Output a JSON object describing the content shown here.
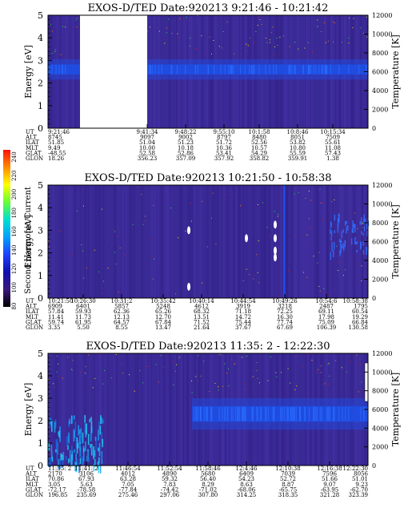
{
  "colorbar": {
    "label": "Second Harmonic Current",
    "ticks": [
      "240",
      "220",
      "200",
      "180",
      "160",
      "140",
      "120",
      "100",
      "80"
    ],
    "colors": [
      "#ff1010",
      "#ff8c00",
      "#ffff00",
      "#66ff33",
      "#00e0d0",
      "#00a0ff",
      "#2040ff",
      "#1010b0",
      "#3a1a7a",
      "#000000"
    ]
  },
  "chart_data": [
    {
      "type": "heatmap",
      "title": "EXOS-D/TED   Date:920213   9:21:46 - 10:21:42",
      "ylabel": "Energy [eV]",
      "ylabel_right": "Temperature [K]",
      "ylim": [
        0,
        5
      ],
      "ylim_right": [
        0,
        12000
      ],
      "y_ticks": [
        "0",
        "1",
        "2",
        "3",
        "4",
        "5"
      ],
      "y2_ticks": [
        "0",
        "2000",
        "4000",
        "6000",
        "8000",
        "10000",
        "12000"
      ],
      "gap": [
        0.1,
        0.31
      ],
      "band": {
        "energy": 2.6,
        "width": 0.45,
        "color": "#1d50e8"
      },
      "orbit": {
        "labels": [
          "UT",
          "ALT",
          "ILAT",
          "MLT",
          "GLAT",
          "GLON"
        ],
        "columns": [
          {
            "at": 0.0,
            "values": [
              "9:21:46",
              "8745",
              "51.85",
              "9.49",
              "-48.55",
              "18.26"
            ]
          },
          {
            "at": 0.31,
            "values": [
              "9:41:34",
              "9097",
              "51.04",
              "10.00",
              "52.58",
              "356.23"
            ]
          },
          {
            "at": 0.43,
            "values": [
              "9:48:22",
              "9002",
              "51.23",
              "10.18",
              "52.86",
              "357.09"
            ]
          },
          {
            "at": 0.55,
            "values": [
              "9:55:10",
              "8797",
              "51.72",
              "10.36",
              "53.41",
              "357.92"
            ]
          },
          {
            "at": 0.66,
            "values": [
              "10:1:58",
              "8480",
              "52.56",
              "10.57",
              "54.29",
              "358.82"
            ]
          },
          {
            "at": 0.78,
            "values": [
              "10:8:46",
              "8051",
              "53.82",
              "10.80",
              "55.59",
              "359.91"
            ]
          },
          {
            "at": 0.89,
            "values": [
              "10:15:34",
              "7509",
              "55.61",
              "11.08",
              "57.43",
              "1.38"
            ]
          }
        ]
      }
    },
    {
      "type": "heatmap",
      "title": "EXOS-D/TED   Date:920213   10:21:50 - 10:58:38",
      "ylabel": "Energy [eV]",
      "ylabel_right": "Temperature [K]",
      "ylim": [
        0,
        5
      ],
      "ylim_right": [
        0,
        12000
      ],
      "y_ticks": [
        "0",
        "1",
        "2",
        "3",
        "4",
        "5"
      ],
      "y2_ticks": [
        "0",
        "2000",
        "4000",
        "6000",
        "8000",
        "10000",
        "12000"
      ],
      "orbit": {
        "labels": [
          "UT",
          "ALT",
          "ILAT",
          "MLT",
          "GLAT",
          "GLON"
        ],
        "columns": [
          {
            "at": 0.0,
            "values": [
              "10:21:50",
              "6909",
              "57.84",
              "11.41",
              "59.74",
              "3.35"
            ]
          },
          {
            "at": 0.11,
            "values": [
              "10:26:30",
              "6401",
              "59.93",
              "11.73",
              "61.95",
              "5.50"
            ]
          },
          {
            "at": 0.23,
            "values": [
              "10:31:2",
              "5857",
              "62.36",
              "12.13",
              "64.57",
              "8.55"
            ]
          },
          {
            "at": 0.36,
            "values": [
              "10:35:42",
              "5248",
              "65.26",
              "12.70",
              "67.84",
              "13.47"
            ]
          },
          {
            "at": 0.48,
            "values": [
              "10:40:14",
              "4612",
              "68.32",
              "13.51",
              "71.52",
              "21.64"
            ]
          },
          {
            "at": 0.61,
            "values": [
              "10:44:54",
              "3919",
              "71.18",
              "14.72",
              "75.44",
              "37.67"
            ]
          },
          {
            "at": 0.74,
            "values": [
              "10:49:26",
              "3218",
              "72.25",
              "16.30",
              "77.74",
              "67.69"
            ]
          },
          {
            "at": 0.87,
            "values": [
              "10:54:6",
              "2487",
              "69.11",
              "17.98",
              "75.09",
              "106.39"
            ]
          },
          {
            "at": 1.0,
            "values": [
              "10:58:38",
              "1795",
              "60.54",
              "19.29",
              "66.84",
              "130.58"
            ]
          }
        ]
      }
    },
    {
      "type": "heatmap",
      "title": "EXOS-D/TED   Date:920213   11:35: 2 - 12:22:30",
      "ylabel": "Energy [eV]",
      "ylabel_right": "Temperature [K]",
      "ylim": [
        0,
        5
      ],
      "ylim_right": [
        0,
        12000
      ],
      "y_ticks": [
        "0",
        "1",
        "2",
        "3",
        "4",
        "5"
      ],
      "y2_ticks": [
        "0",
        "2000",
        "4000",
        "6000",
        "8000",
        "10000",
        "12000"
      ],
      "band": {
        "energy": 2.3,
        "width": 0.7,
        "color": "#1d50e8",
        "from": 0.45
      },
      "orbit": {
        "labels": [
          "UT",
          "ALT",
          "ILAT",
          "MLT",
          "GLAT",
          "GLON"
        ],
        "columns": [
          {
            "at": 0.0,
            "values": [
              "11:35: 2",
              "2170",
              "70.86",
              "3.05",
              "-72.17",
              "196.85"
            ]
          },
          {
            "at": 0.12,
            "values": [
              "11:41: 2",
              "3106",
              "67.93",
              "5.63",
              "-78.58",
              "235.69"
            ]
          },
          {
            "at": 0.25,
            "values": [
              "11:46:54",
              "4012",
              "63.28",
              "7.05",
              "-77.84",
              "275.46"
            ]
          },
          {
            "at": 0.38,
            "values": [
              "11:52:54",
              "4890",
              "59.32",
              "7.83",
              "-74.42",
              "297.06"
            ]
          },
          {
            "at": 0.5,
            "values": [
              "11:58:46",
              "5680",
              "56.40",
              "8.29",
              "-71.02",
              "307.80"
            ]
          },
          {
            "at": 0.62,
            "values": [
              "12:4:46",
              "6409",
              "54.23",
              "8.63",
              "-68.06",
              "314.25"
            ]
          },
          {
            "at": 0.75,
            "values": [
              "12:10:38",
              "7039",
              "52.72",
              "8.87",
              "-65.75",
              "318.35"
            ]
          },
          {
            "at": 0.88,
            "values": [
              "12:16:38",
              "7596",
              "51.66",
              "9.07",
              "-63.95",
              "321.28"
            ]
          },
          {
            "at": 1.0,
            "values": [
              "12:22:30",
              "8056",
              "51.01",
              "9.23",
              "-62.70",
              "323.39"
            ]
          }
        ]
      }
    }
  ]
}
